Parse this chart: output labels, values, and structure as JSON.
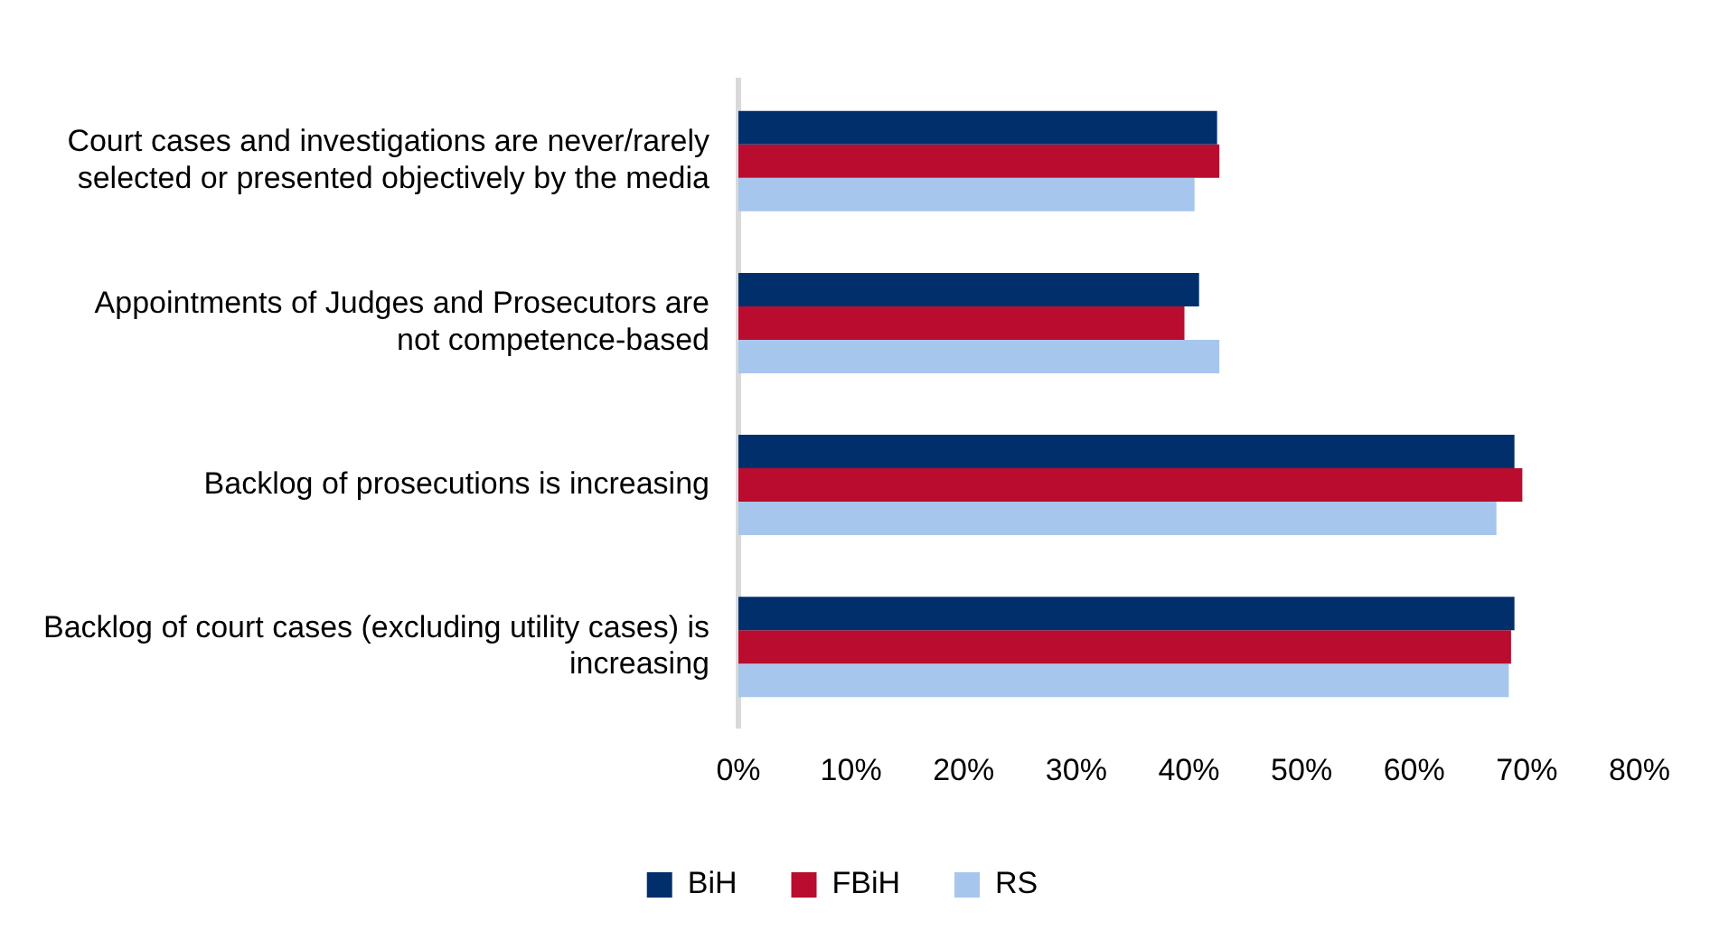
{
  "chart_data": {
    "type": "bar",
    "orientation": "horizontal",
    "categories": [
      "Court cases and investigations are never/rarely\nselected or presented objectively by the media",
      "Appointments of Judges and Prosecutors are\nnot competence-based",
      "Backlog of prosecutions is increasing",
      "Backlog of court cases (excluding utility cases) is\nincreasing"
    ],
    "series": [
      {
        "name": "BiH",
        "color": "#002f6c",
        "values": [
          42.5,
          40.9,
          68.9,
          68.9
        ]
      },
      {
        "name": "FBiH",
        "color": "#ba0c2f",
        "values": [
          42.7,
          39.6,
          69.6,
          68.6
        ]
      },
      {
        "name": "RS",
        "color": "#a7c6ed",
        "values": [
          40.5,
          42.7,
          67.3,
          68.4
        ]
      }
    ],
    "xlim": [
      0,
      80
    ],
    "xticks": [
      {
        "value": 0,
        "label": "0%"
      },
      {
        "value": 10,
        "label": "10%"
      },
      {
        "value": 20,
        "label": "20%"
      },
      {
        "value": 30,
        "label": "30%"
      },
      {
        "value": 40,
        "label": "40%"
      },
      {
        "value": 50,
        "label": "50%"
      },
      {
        "value": 60,
        "label": "60%"
      },
      {
        "value": 70,
        "label": "70%"
      },
      {
        "value": 80,
        "label": "80%"
      }
    ],
    "grid": false,
    "legend": "bottom"
  }
}
